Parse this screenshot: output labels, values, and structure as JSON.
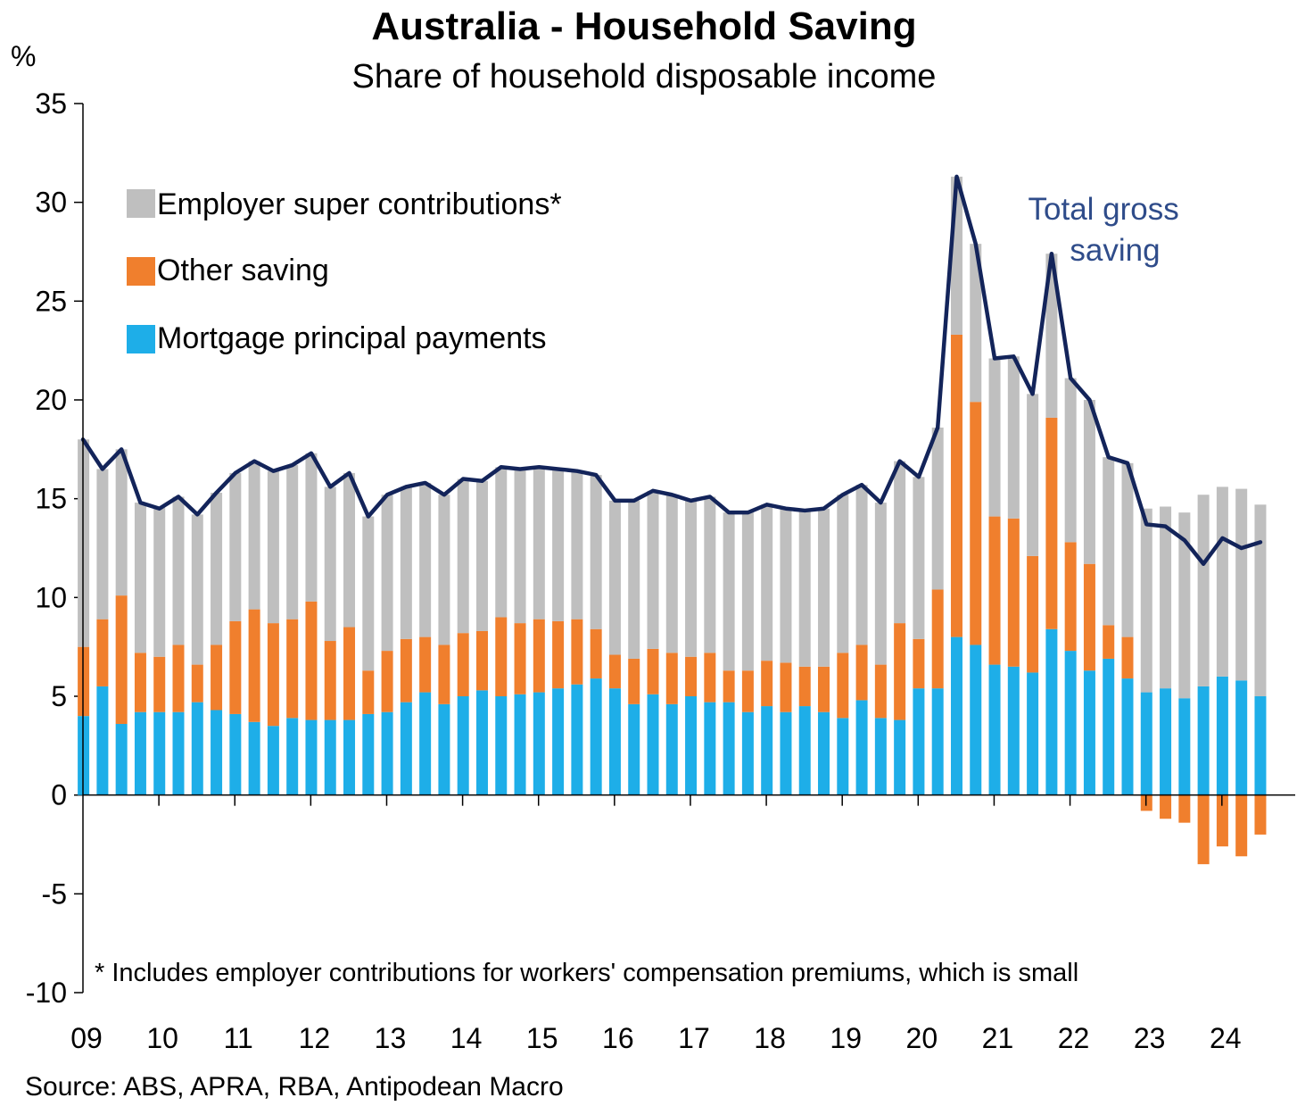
{
  "chart_data": {
    "type": "bar",
    "stacked": true,
    "title": "Australia - Household Saving",
    "subtitle": "Share of household disposable income",
    "ylabel": "%",
    "ylim": [
      -10,
      35
    ],
    "yticks": [
      "35",
      "30",
      "25",
      "20",
      "15",
      "10",
      "5",
      "0",
      "-5",
      "-10"
    ],
    "xticks": [
      "09",
      "10",
      "11",
      "12",
      "13",
      "14",
      "15",
      "16",
      "17",
      "18",
      "19",
      "20",
      "21",
      "22",
      "23",
      "24"
    ],
    "x_start": "2009Q1",
    "frequency": "quarterly",
    "legend": {
      "placement": "top-left",
      "order": [
        "employer_super",
        "other_saving",
        "mortgage_principal"
      ]
    },
    "series": [
      {
        "key": "mortgage_principal",
        "name": "Mortgage principal payments",
        "color": "#1EAEE8",
        "values": [
          4.0,
          5.5,
          3.6,
          4.2,
          4.2,
          4.2,
          4.7,
          4.3,
          4.1,
          3.7,
          3.5,
          3.9,
          3.8,
          3.8,
          3.8,
          4.1,
          4.2,
          4.7,
          5.2,
          4.6,
          5.0,
          5.3,
          5.0,
          5.1,
          5.2,
          5.4,
          5.6,
          5.9,
          5.4,
          4.6,
          5.1,
          4.6,
          5.0,
          4.7,
          4.7,
          4.2,
          4.5,
          4.2,
          4.5,
          4.2,
          3.9,
          4.8,
          3.9,
          3.8,
          5.4,
          5.4,
          8.0,
          7.6,
          6.6,
          6.5,
          6.2,
          8.4,
          7.3,
          6.3,
          6.9,
          5.9,
          5.2,
          5.4,
          4.9,
          5.5,
          6.0,
          5.8,
          5.0
        ]
      },
      {
        "key": "other_saving",
        "name": "Other saving",
        "color": "#F07F2D",
        "values": [
          3.5,
          3.4,
          6.5,
          3.0,
          2.8,
          3.4,
          1.9,
          3.3,
          4.7,
          5.7,
          5.2,
          5.0,
          6.0,
          4.0,
          4.7,
          2.2,
          3.1,
          3.2,
          2.8,
          3.0,
          3.2,
          3.0,
          4.0,
          3.6,
          3.7,
          3.4,
          3.3,
          2.5,
          1.7,
          2.3,
          2.3,
          2.6,
          2.0,
          2.5,
          1.6,
          2.1,
          2.3,
          2.5,
          2.0,
          2.3,
          3.3,
          2.8,
          2.7,
          4.9,
          2.5,
          5.0,
          15.3,
          12.3,
          7.5,
          7.5,
          5.9,
          10.7,
          5.5,
          5.4,
          1.7,
          2.1,
          -0.8,
          -1.2,
          -1.4,
          -3.5,
          -2.6,
          -3.1,
          -2.0
        ]
      },
      {
        "key": "employer_super",
        "name": "Employer super contributions*",
        "color": "#BFBFBF",
        "values": [
          10.5,
          7.6,
          7.4,
          7.6,
          7.6,
          7.5,
          7.6,
          7.7,
          7.5,
          7.5,
          7.7,
          7.8,
          7.5,
          7.8,
          7.8,
          7.8,
          7.9,
          7.7,
          7.8,
          7.6,
          7.8,
          7.6,
          7.6,
          7.8,
          7.7,
          7.7,
          7.5,
          7.8,
          7.8,
          8.0,
          8.0,
          8.0,
          7.9,
          7.9,
          8.0,
          8.0,
          7.9,
          7.8,
          7.9,
          8.0,
          8.0,
          8.1,
          8.2,
          8.2,
          8.2,
          8.2,
          8.0,
          8.0,
          8.0,
          8.2,
          8.2,
          8.3,
          8.3,
          8.3,
          8.5,
          8.8,
          9.3,
          9.2,
          9.4,
          9.7,
          9.6,
          9.7,
          9.7
        ]
      },
      {
        "key": "total_gross_saving",
        "name": "Total gross saving",
        "type": "line",
        "color": "#13245A",
        "values": [
          18.0,
          16.5,
          17.5,
          14.8,
          14.5,
          15.1,
          14.2,
          15.3,
          16.3,
          16.9,
          16.4,
          16.7,
          17.3,
          15.6,
          16.3,
          14.1,
          15.2,
          15.6,
          15.8,
          15.2,
          16.0,
          15.9,
          16.6,
          16.5,
          16.6,
          16.5,
          16.4,
          16.2,
          14.9,
          14.9,
          15.4,
          15.2,
          14.9,
          15.1,
          14.3,
          14.3,
          14.7,
          14.5,
          14.4,
          14.5,
          15.2,
          15.7,
          14.8,
          16.9,
          16.1,
          18.6,
          31.3,
          27.9,
          22.1,
          22.2,
          20.3,
          27.4,
          21.1,
          20.0,
          17.1,
          16.8,
          13.7,
          13.6,
          12.9,
          11.7,
          13.0,
          12.5,
          12.8
        ]
      }
    ],
    "annotation": "Total  gross\nsaving",
    "note": "* Includes employer contributions for workers' compensation premiums, which is small",
    "source": "Source: ABS, APRA, RBA, Antipodean Macro"
  }
}
